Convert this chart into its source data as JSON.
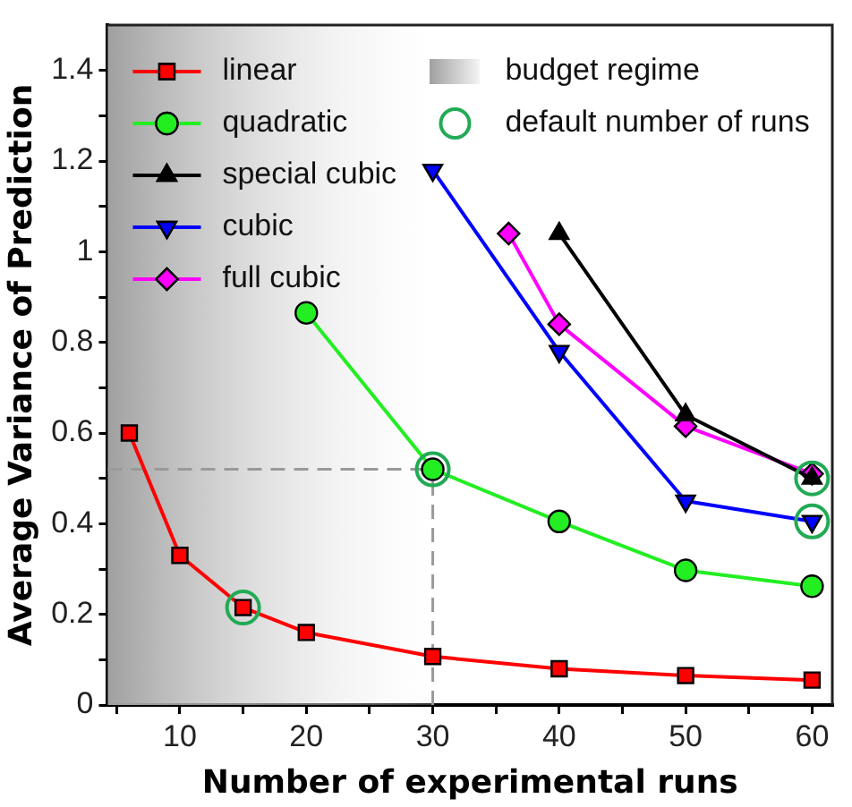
{
  "chart_data": {
    "type": "line",
    "xlabel": "Number of experimental runs",
    "ylabel": "Average Variance of Prediction",
    "xlim": [
      4.3,
      61.6
    ],
    "ylim": [
      0,
      1.5
    ],
    "xticks": [
      {
        "value": 5,
        "label": null
      },
      10,
      {
        "value": 15,
        "label": null
      },
      20,
      {
        "value": 25,
        "label": null
      },
      30,
      {
        "value": 35,
        "label": null
      },
      40,
      {
        "value": 45,
        "label": null
      },
      50,
      {
        "value": 55,
        "label": null
      },
      60
    ],
    "yticks": [
      0,
      {
        "value": 0.1,
        "label": null
      },
      0.2,
      {
        "value": 0.3,
        "label": null
      },
      0.4,
      {
        "value": 0.5,
        "label": null
      },
      0.6,
      {
        "value": 0.7,
        "label": null
      },
      0.8,
      {
        "value": 0.9,
        "label": null
      },
      1,
      {
        "value": 1.1,
        "label": null
      },
      1.2,
      {
        "value": 1.3,
        "label": null
      },
      1.4
    ],
    "grid": false,
    "legend": "top left",
    "line_style": "solid",
    "series": [
      {
        "name": "linear",
        "color": "#ff0000",
        "marker": "square",
        "x": [
          6,
          10,
          15,
          20,
          30,
          40,
          50,
          60
        ],
        "values": [
          0.6,
          0.33,
          0.215,
          0.16,
          0.107,
          0.08,
          0.065,
          0.055
        ]
      },
      {
        "name": "quadratic",
        "color": "#22ee22",
        "marker": "circle",
        "x": [
          20,
          30,
          40,
          50,
          60
        ],
        "values": [
          0.865,
          0.52,
          0.405,
          0.297,
          0.262
        ]
      },
      {
        "name": "special cubic",
        "color": "#000000",
        "marker": "triangle",
        "x": [
          40,
          50,
          60
        ],
        "values": [
          1.04,
          0.64,
          0.5
        ]
      },
      {
        "name": "cubic",
        "color": "#0000ff",
        "marker": "triangle-down",
        "x": [
          30,
          40,
          50,
          60
        ],
        "values": [
          1.18,
          0.78,
          0.45,
          0.405
        ]
      },
      {
        "name": "full cubic",
        "color": "#ff00ff",
        "marker": "diamond",
        "x": [
          36,
          40,
          50,
          60
        ],
        "values": [
          1.04,
          0.84,
          0.615,
          0.51
        ]
      },
      {
        "name": "default number of runs",
        "type": "scatter",
        "color": "#22aa55",
        "marker": "circle",
        "x": [
          15,
          30,
          60,
          60
        ],
        "values": [
          0.215,
          0.52,
          0.5,
          0.405
        ]
      }
    ],
    "bands": [
      {
        "axis": "x",
        "from": 4.3,
        "to": 30,
        "label": "budget regime",
        "color": "#a0a0a0"
      }
    ],
    "ref_lines": [
      {
        "axis": "x",
        "value": 30,
        "color": "#999999",
        "line_style": "dashed"
      },
      {
        "axis": "y",
        "value": 0.52,
        "color": "#999999",
        "line_style": "dashed"
      }
    ]
  }
}
